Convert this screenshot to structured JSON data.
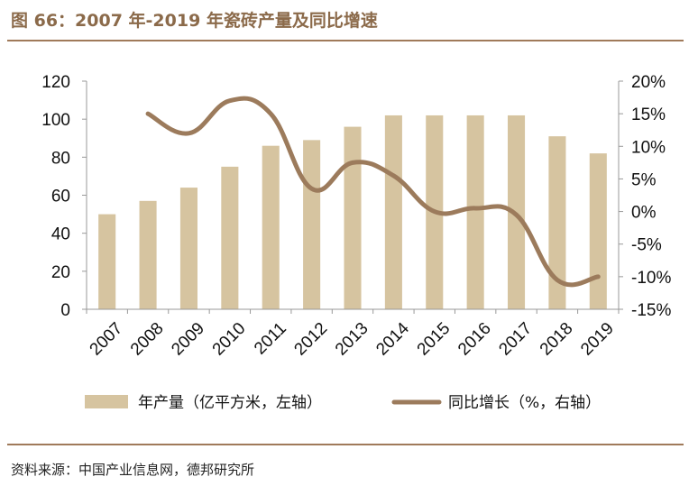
{
  "title": "图 66：2007 年-2019 年瓷砖产量及同比增速",
  "source": "资料来源：中国产业信息网，德邦研究所",
  "colors": {
    "bar": "#D6C4A0",
    "line": "#9C7B5C",
    "title": "#8B6A4A",
    "rule": "#A07A5A"
  },
  "chart_data": {
    "type": "bar+line",
    "categories": [
      "2007",
      "2008",
      "2009",
      "2010",
      "2011",
      "2012",
      "2013",
      "2014",
      "2015",
      "2016",
      "2017",
      "2018",
      "2019"
    ],
    "series": [
      {
        "name": "年产量（亿平方米，左轴）",
        "type": "bar",
        "axis": "left",
        "values": [
          50,
          57,
          64,
          75,
          86,
          89,
          96,
          102,
          102,
          102,
          102,
          91,
          82
        ]
      },
      {
        "name": "同比增长（%，右轴）",
        "type": "line",
        "axis": "right",
        "values": [
          null,
          15,
          12,
          17,
          15,
          3.5,
          7.5,
          5.5,
          0,
          0.5,
          -0.5,
          -10.5,
          -10
        ]
      }
    ],
    "left_axis": {
      "min": 0,
      "max": 120,
      "ticks": [
        "0",
        "20",
        "40",
        "60",
        "80",
        "100",
        "120"
      ]
    },
    "right_axis": {
      "min": -15,
      "max": 20,
      "ticks": [
        "-15%",
        "-10%",
        "-5%",
        "0%",
        "5%",
        "10%",
        "15%",
        "20%"
      ]
    },
    "legend": [
      "年产量（亿平方米，左轴）",
      "同比增长（%，右轴）"
    ]
  }
}
